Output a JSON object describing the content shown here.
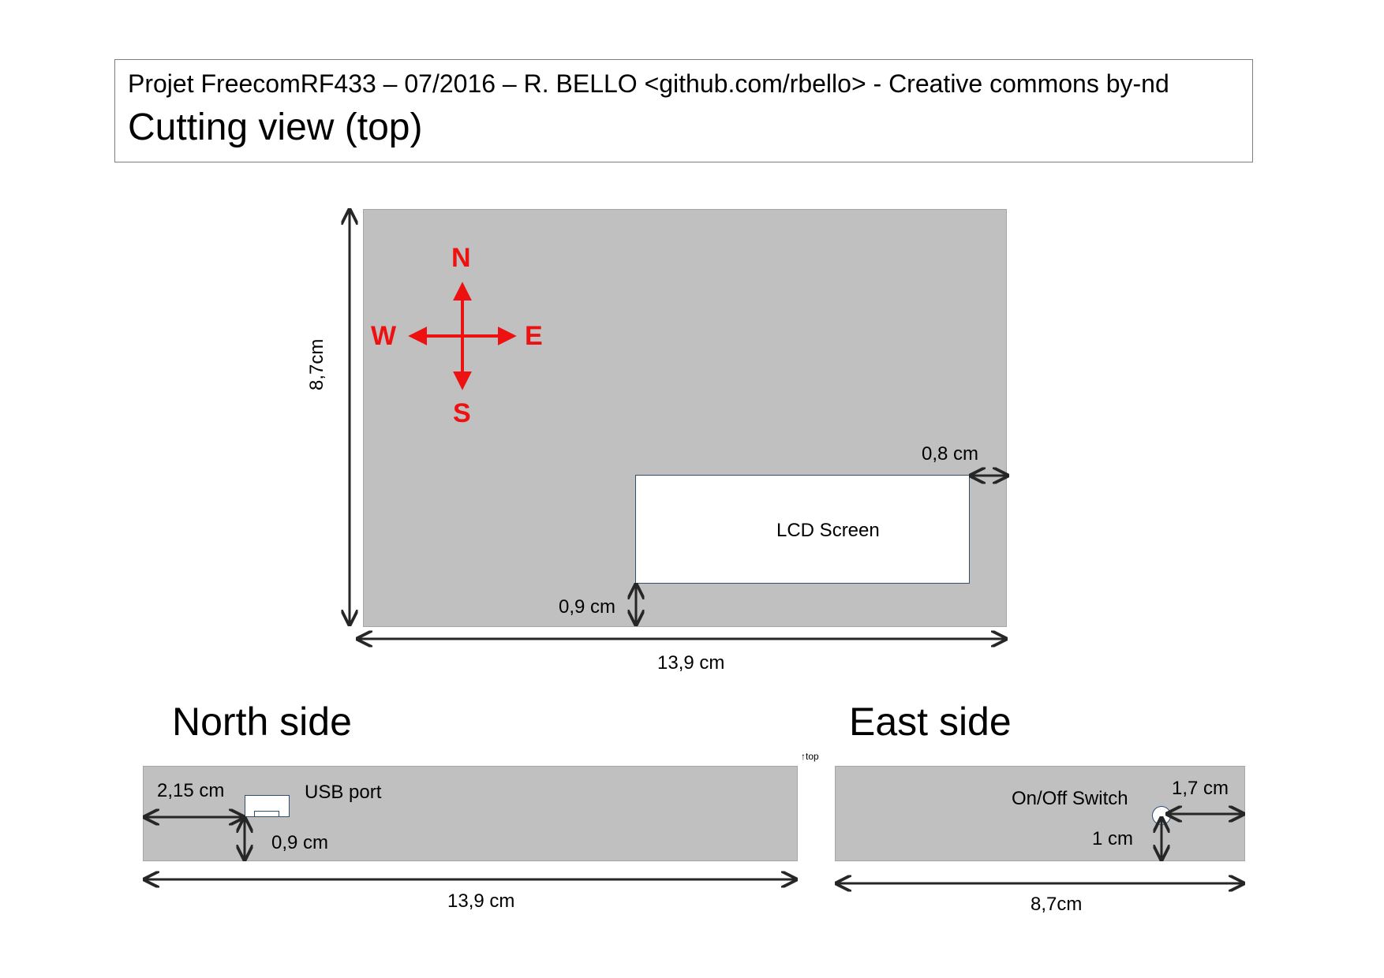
{
  "header": {
    "project_line": "Projet FreecomRF433 – 07/2016 – R. BELLO <github.com/rbello> - Creative commons by-nd",
    "view_title": "Cutting view (top)"
  },
  "top_view": {
    "compass": {
      "north": "N",
      "south": "S",
      "east": "E",
      "west": "W"
    },
    "lcd_label": "LCD Screen",
    "height_label": "8,7cm",
    "width_label": "13,9 cm",
    "lcd_right_margin_label": "0,8 cm",
    "lcd_bottom_margin_label": "0,9 cm"
  },
  "north_side": {
    "title": "North side",
    "usb_label": "USB port",
    "usb_left_offset_label": "2,15 cm",
    "usb_bottom_offset_label": "0,9 cm",
    "width_label": "13,9 cm",
    "top_marker": "top"
  },
  "east_side": {
    "title": "East side",
    "switch_label": "On/Off Switch",
    "switch_right_offset_label": "1,7 cm",
    "switch_bottom_offset_label": "1 cm",
    "width_label": "8,7cm"
  },
  "colors": {
    "panel": "#c0c0c0",
    "compass": "#ee1111",
    "dimension_arrows": "#262626"
  }
}
